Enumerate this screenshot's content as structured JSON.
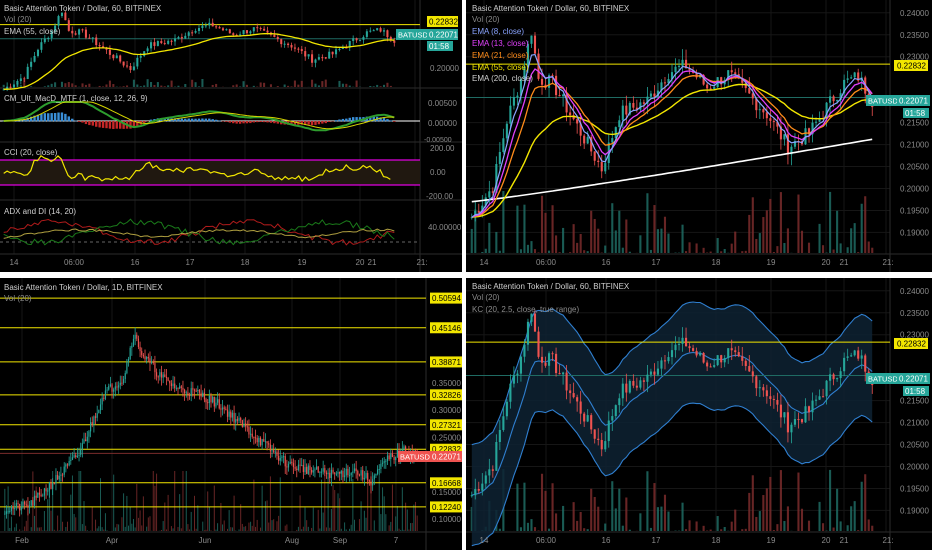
{
  "chart_data": [
    {
      "type": "candlestick",
      "symbol": "BATUSD",
      "title": "Basic Attention Token / Dollar, 60, BITFINEX",
      "volume_label": "Vol (20)",
      "overlay_label": "EMA (55, close)",
      "price_ticks": [
        "0.22832",
        "0.22071",
        "0.20000"
      ],
      "price_ylim": [
        0.18,
        0.245
      ],
      "hlines": [
        0.22832,
        0.22071
      ],
      "last_price": "0.22071",
      "countdown": "01:58",
      "x_ticks": [
        "14",
        "06:00",
        "16",
        "17",
        "18",
        "19",
        "20",
        "21",
        "21:"
      ],
      "indicators": [
        {
          "label": "CM_Ult_MacD_MTF (1, close, 12, 26, 9)",
          "ticks": [
            "0.00500",
            "0.00000",
            "-0.00500"
          ]
        },
        {
          "label": "CCI (20, close)",
          "ticks": [
            "200.00",
            "0.00",
            "-200.00"
          ]
        },
        {
          "label": "ADX and DI (14, 20)",
          "ticks": [
            "40.00000"
          ]
        }
      ]
    },
    {
      "type": "candlestick",
      "symbol": "BATUSD",
      "title": "Basic Attention Token / Dollar, 60, BITFINEX",
      "legend": [
        "Vol (20)",
        "EMA (8, close)",
        "EMA (13, close)",
        "EMA (21, close)",
        "EMA (55, close)",
        "EMA (200, close)"
      ],
      "price_ticks": [
        "0.24000",
        "0.23500",
        "0.23000",
        "0.22832",
        "0.22071",
        "0.21500",
        "0.21000",
        "0.20500",
        "0.20000",
        "0.19500",
        "0.19000"
      ],
      "price_ylim": [
        0.186,
        0.242
      ],
      "hlines": [
        0.22832,
        0.22071
      ],
      "last_price": "0.22071",
      "countdown": "01:58",
      "x_ticks": [
        "14",
        "06:00",
        "16",
        "17",
        "18",
        "19",
        "20",
        "21",
        "21:"
      ]
    },
    {
      "type": "candlestick",
      "symbol": "BATUSD",
      "title": "Basic Attention Token / Dollar, 1D, BITFINEX",
      "volume_label": "Vol (20)",
      "price_ticks": [
        "0.50594",
        "0.45146",
        "0.38871",
        "0.35000",
        "0.32826",
        "0.30000",
        "0.27321",
        "0.25000",
        "0.22832",
        "0.22071",
        "0.16668",
        "0.15000",
        "0.12240",
        "0.10000"
      ],
      "fib_levels": [
        0.50594,
        0.45146,
        0.38871,
        0.32826,
        0.27321,
        0.22832,
        0.16668,
        0.1224
      ],
      "price_ylim": [
        0.08,
        0.53
      ],
      "last_price": "0.22071",
      "x_ticks": [
        "Feb",
        "Apr",
        "Jun",
        "Aug",
        "Sep",
        "7"
      ]
    },
    {
      "type": "candlestick",
      "symbol": "BATUSD",
      "title": "Basic Attention Token / Dollar, 60, BITFINEX",
      "legend": [
        "Vol (20)",
        "KC (20, 2.5, close, true range)"
      ],
      "price_ticks": [
        "0.24000",
        "0.23500",
        "0.23000",
        "0.22832",
        "0.22071",
        "0.21500",
        "0.21000",
        "0.20500",
        "0.20000",
        "0.19500",
        "0.19000"
      ],
      "price_ylim": [
        0.186,
        0.242
      ],
      "hlines": [
        0.22832,
        0.22071
      ],
      "last_price": "0.22071",
      "countdown": "01:58",
      "x_ticks": [
        "14",
        "06:00",
        "16",
        "17",
        "18",
        "19",
        "20",
        "21",
        "21:"
      ]
    }
  ]
}
